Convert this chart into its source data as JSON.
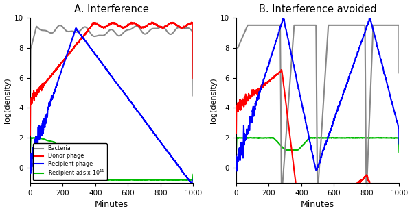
{
  "panel_A_title": "A. Interference",
  "panel_B_title": "B. Interference avoided",
  "xlabel": "Minutes",
  "ylabel": "log(density)",
  "xlim": [
    0,
    1000
  ],
  "ylim": [
    -1,
    10
  ],
  "yticks": [
    0,
    2,
    4,
    6,
    8,
    10
  ],
  "xticks": [
    0,
    200,
    400,
    600,
    800,
    1000
  ],
  "colors": {
    "bacteria": "#888888",
    "donor": "#ff0000",
    "recipient": "#0000ff",
    "ads": "#00bb00"
  },
  "lw": 1.5
}
